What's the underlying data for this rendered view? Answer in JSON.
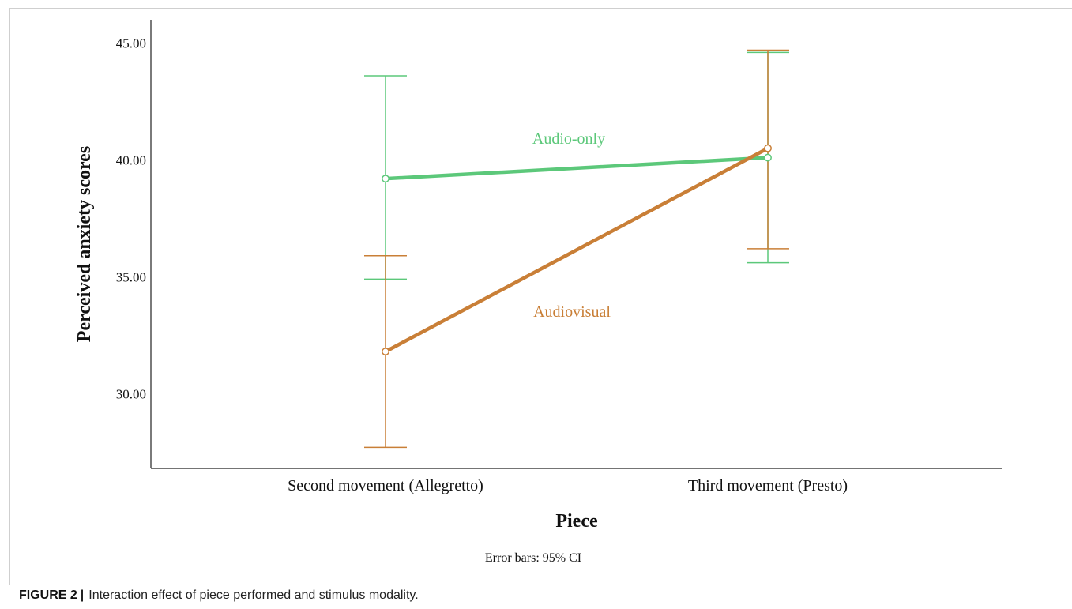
{
  "caption": {
    "figure_number": "FIGURE 2",
    "separator": "|",
    "text": "Interaction effect of piece performed and stimulus modality."
  },
  "colors": {
    "audio_only": "#5cc87a",
    "audiovisual": "#c97f37",
    "axis": "#222222"
  },
  "chart_data": {
    "type": "line",
    "title": "",
    "xlabel": "Piece",
    "ylabel": "Perceived anxiety scores",
    "categories": [
      "Second movement (Allegretto)",
      "Third movement (Presto)"
    ],
    "ylim": [
      26.8,
      46.0
    ],
    "yticks": [
      30.0,
      35.0,
      40.0,
      45.0
    ],
    "ytick_labels": [
      "30.00",
      "35.00",
      "40.00",
      "45.00"
    ],
    "grid": false,
    "note": "Error bars: 95% CI",
    "series": [
      {
        "name": "Audio-only",
        "color": "#5cc87a",
        "values": [
          39.2,
          40.1
        ],
        "ci_low": [
          34.9,
          35.6
        ],
        "ci_high": [
          43.6,
          44.6
        ]
      },
      {
        "name": "Audiovisual",
        "color": "#c97f37",
        "values": [
          31.8,
          40.5
        ],
        "ci_low": [
          27.7,
          36.2
        ],
        "ci_high": [
          35.9,
          44.7
        ]
      }
    ]
  }
}
